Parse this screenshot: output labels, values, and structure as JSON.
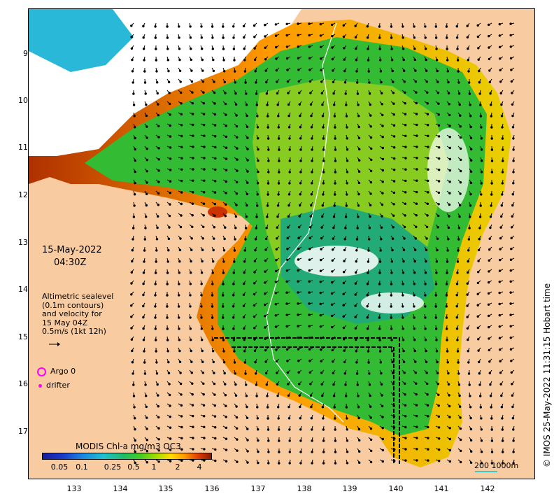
{
  "map": {
    "date": "15-May-2022",
    "time": "04:30Z",
    "legend_lines": [
      "Altimetric sealevel",
      "(0.1m contours)",
      "and velocity for",
      "15 May 04Z",
      "0.5m/s (1kt 12h)"
    ],
    "argo_label": "Argo 0",
    "drifter_label": "drifter",
    "colorbar_title": "MODIS Chl-a mg/m3 OC3",
    "colorbar_ticks": [
      "0.05",
      "0.1",
      "0.25",
      "0.5",
      "1",
      "2",
      "4"
    ],
    "scale_label": "200  1000m",
    "copyright": "© IMOS 25-May-2022 11:31:15 Hobart time",
    "y_ticks": [
      "9",
      "10",
      "11",
      "12",
      "13",
      "14",
      "15",
      "16",
      "17"
    ],
    "x_ticks": [
      "133",
      "134",
      "135",
      "136",
      "137",
      "138",
      "139",
      "140",
      "141",
      "142"
    ],
    "colors": {
      "land": "#f8cba0",
      "low_chl": "#29b8d8",
      "mid_chl": "#33bb33",
      "high_chl": "#ff9a00",
      "very_high_chl": "#b03000",
      "track": "#000000",
      "argo": "#ff00ff",
      "isobath": "#33cccc"
    }
  }
}
